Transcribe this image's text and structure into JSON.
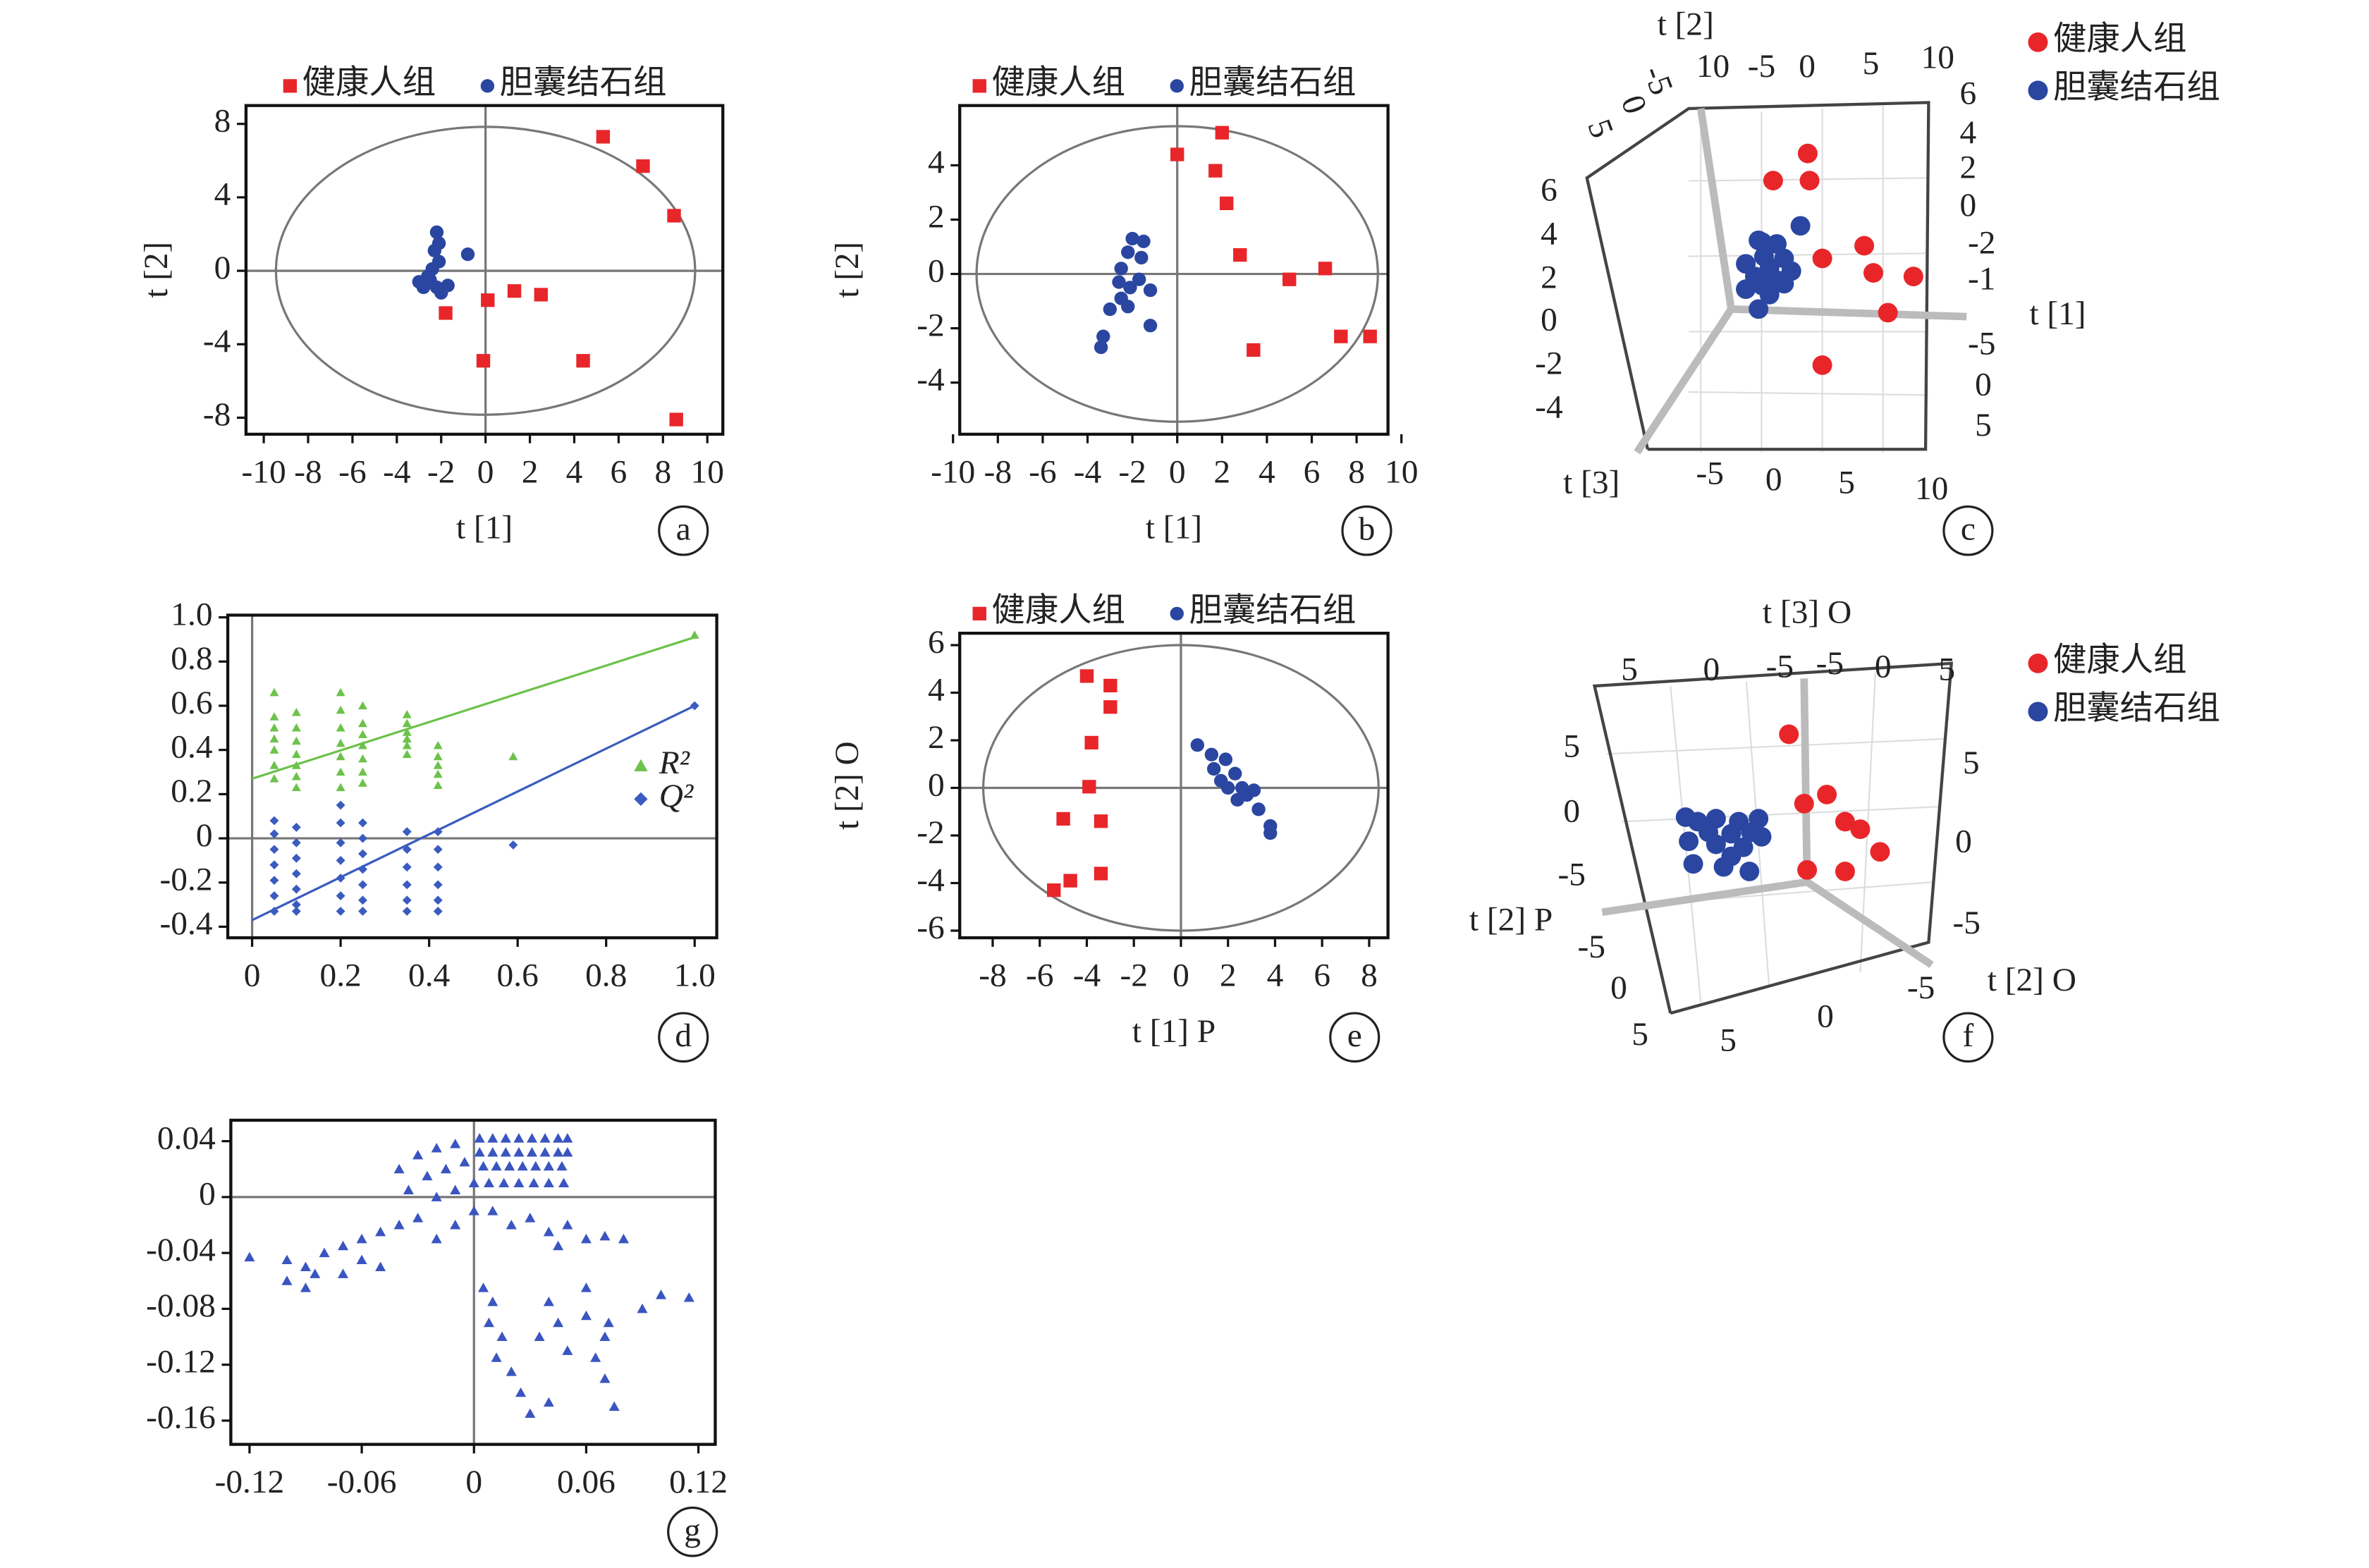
{
  "chart_data": [
    {
      "type": "scatter",
      "panel": "a",
      "x_label": "t [1]",
      "y_label": "t [2]",
      "legend": "top",
      "origin_lines": true,
      "xlim": [
        -10.8,
        10.7
      ],
      "ylim": [
        -8.9,
        9
      ],
      "xticks": [
        -10,
        -8,
        -6,
        -4,
        -2,
        0,
        2,
        4,
        6,
        8,
        10
      ],
      "yticks": [
        -8,
        -4,
        0,
        4,
        8
      ],
      "ellipse": {
        "rx": 9.45,
        "ry": 7.84
      },
      "series": [
        {
          "name": "健康人组",
          "color": "#e8262a",
          "marker": "square",
          "x": [
            5.3,
            7.1,
            8.5,
            1.3,
            2.5,
            0.1,
            -1.8,
            -0.1,
            4.4,
            8.6
          ],
          "y": [
            7.3,
            5.7,
            3,
            -1.1,
            -1.3,
            -1.6,
            -2.3,
            -4.9,
            -4.9,
            -8.1
          ]
        },
        {
          "name": "胆囊结石组",
          "color": "#2a46a0",
          "marker": "circle",
          "x": [
            -2.2,
            -2.1,
            -2.3,
            -0.8,
            -2.1,
            -2.6,
            -3,
            -2.2,
            -2.8,
            -2,
            -1.7,
            -2.4,
            -2.5
          ],
          "y": [
            2.1,
            1.5,
            1.1,
            0.9,
            0.5,
            -0.3,
            -0.6,
            -0.9,
            -0.9,
            -1.2,
            -0.8,
            0.1,
            -0.5
          ]
        }
      ]
    },
    {
      "type": "scatter",
      "panel": "b",
      "x_label": "t [1]",
      "y_label": "t [2]",
      "legend": "top",
      "origin_lines": true,
      "xlim": [
        -9.7,
        9.4
      ],
      "ylim": [
        -5.9,
        6.2
      ],
      "xticks": [
        -10,
        -8,
        -6,
        -4,
        -2,
        0,
        2,
        4,
        6,
        8,
        10
      ],
      "yticks": [
        -4,
        -2,
        0,
        2,
        4
      ],
      "ellipse": {
        "rx": 8.95,
        "ry": 5.44
      },
      "series": [
        {
          "name": "健康人组",
          "color": "#e8262a",
          "marker": "square",
          "x": [
            0,
            2,
            1.7,
            2.2,
            2.8,
            5,
            6.6,
            3.4,
            7.3,
            8.6
          ],
          "y": [
            4.4,
            5.2,
            3.8,
            2.6,
            0.7,
            -0.2,
            0.2,
            -2.8,
            -2.3,
            -2.3
          ]
        },
        {
          "name": "胆囊结石组",
          "color": "#2a46a0",
          "marker": "circle",
          "x": [
            -2,
            -1.5,
            -2.2,
            -1.6,
            -2.5,
            -1.7,
            -2.6,
            -2.1,
            -1.2,
            -3,
            -2.2,
            -3.3,
            -3.4,
            -1.2,
            -2.5
          ],
          "y": [
            1.3,
            1.2,
            0.8,
            0.6,
            0.2,
            -0.2,
            -0.3,
            -0.5,
            -0.6,
            -1.3,
            -1.2,
            -2.3,
            -2.7,
            -1.9,
            -0.9
          ]
        }
      ]
    },
    {
      "type": "scatter3d",
      "panel": "c",
      "legend": "right",
      "axis_labels": [
        "t [2]",
        "t [1]",
        "t [3]"
      ],
      "tick_groups": [
        [
          10,
          -5,
          0,
          5,
          10
        ],
        [
          -5,
          0,
          5
        ],
        [
          6,
          4,
          2,
          0,
          -2,
          -1,
          -5,
          0,
          5
        ],
        [
          -5,
          0,
          5,
          10
        ],
        [
          6,
          4,
          2,
          0,
          -2,
          -4
        ]
      ],
      "series": [
        {
          "name": "健康人组",
          "color": "#e8262a",
          "x": [
            4.2,
            2.3,
            4.3,
            7.3,
            7.8,
            10,
            5,
            8.6,
            5
          ],
          "y": [
            8.6,
            7.1,
            7.1,
            3.5,
            2,
            1.8,
            2.8,
            -0.2,
            -3.1
          ]
        },
        {
          "name": "胆囊结石组",
          "color": "#2a46a0",
          "x": [
            1.5,
            2.5,
            1.8,
            2.9,
            0.8,
            2.1,
            3.3,
            1.3,
            2.5,
            1.7,
            2.9,
            0.8,
            2.1,
            1.5,
            1.7,
            3.8
          ],
          "y": [
            3.8,
            3.6,
            2.9,
            2.8,
            2.5,
            2.3,
            2.1,
            1.8,
            1.6,
            1.3,
            1.4,
            1.1,
            0.8,
            0,
            3.7,
            4.6
          ]
        }
      ]
    },
    {
      "type": "scatter",
      "panel": "d",
      "legend": "inside-right",
      "origin_lines": true,
      "xlim": [
        -0.055,
        1.05
      ],
      "ylim": [
        -0.45,
        1.01
      ],
      "xticks": [
        0,
        0.2,
        0.4,
        0.6,
        0.8,
        {
          "value": 1,
          "label": "1.0"
        }
      ],
      "yticks": [
        -0.4,
        -0.2,
        0,
        0.2,
        0.4,
        0.6,
        0.8,
        {
          "value": 1,
          "label": "1.0"
        }
      ],
      "series": [
        {
          "name": "R²",
          "color": "#6cc24a",
          "marker": "triangle",
          "x": [
            0.05,
            0.05,
            0.05,
            0.05,
            0.05,
            0.05,
            0.05,
            0.1,
            0.1,
            0.1,
            0.1,
            0.1,
            0.1,
            0.1,
            0.2,
            0.2,
            0.2,
            0.2,
            0.2,
            0.2,
            0.2,
            0.25,
            0.25,
            0.25,
            0.25,
            0.25,
            0.25,
            0.25,
            0.35,
            0.35,
            0.35,
            0.35,
            0.35,
            0.35,
            0.42,
            0.42,
            0.42,
            0.42,
            0.42,
            0.59,
            1
          ],
          "y": [
            0.66,
            0.55,
            0.5,
            0.45,
            0.4,
            0.33,
            0.27,
            0.57,
            0.5,
            0.44,
            0.38,
            0.33,
            0.28,
            0.23,
            0.66,
            0.58,
            0.5,
            0.43,
            0.37,
            0.3,
            0.23,
            0.6,
            0.52,
            0.47,
            0.42,
            0.36,
            0.3,
            0.25,
            0.56,
            0.52,
            0.48,
            0.45,
            0.42,
            0.38,
            0.42,
            0.37,
            0.33,
            0.29,
            0.24,
            0.37,
            0.92
          ],
          "fit": {
            "x": [
              0,
              1
            ],
            "y": [
              0.27,
              0.91
            ]
          }
        },
        {
          "name": "Q²",
          "color": "#3a5bbf",
          "marker": "diamond",
          "x": [
            0.05,
            0.05,
            0.05,
            0.05,
            0.05,
            0.05,
            0.05,
            0.1,
            0.1,
            0.1,
            0.1,
            0.1,
            0.1,
            0.1,
            0.2,
            0.2,
            0.2,
            0.2,
            0.2,
            0.2,
            0.2,
            0.25,
            0.25,
            0.25,
            0.25,
            0.25,
            0.25,
            0.25,
            0.35,
            0.35,
            0.35,
            0.35,
            0.35,
            0.35,
            0.42,
            0.42,
            0.42,
            0.42,
            0.42,
            0.42,
            0.59,
            1
          ],
          "y": [
            0.08,
            0.02,
            -0.05,
            -0.12,
            -0.19,
            -0.26,
            -0.33,
            0.05,
            -0.02,
            -0.09,
            -0.16,
            -0.23,
            -0.3,
            -0.33,
            0.15,
            0.07,
            -0.02,
            -0.1,
            -0.18,
            -0.26,
            -0.33,
            0.07,
            0,
            -0.07,
            -0.14,
            -0.21,
            -0.28,
            -0.33,
            0.03,
            -0.05,
            -0.13,
            -0.21,
            -0.28,
            -0.33,
            0.03,
            -0.05,
            -0.13,
            -0.21,
            -0.28,
            -0.33,
            -0.03,
            0.6
          ],
          "fit": {
            "x": [
              0,
              1
            ],
            "y": [
              -0.37,
              0.6
            ]
          }
        }
      ]
    },
    {
      "type": "scatter",
      "panel": "e",
      "x_label": "t [1] P",
      "y_label": "t [2] O",
      "legend": "top",
      "origin_lines": true,
      "xlim": [
        -9.4,
        8.8
      ],
      "ylim": [
        -6.3,
        6.5
      ],
      "xticks": [
        -8,
        -6,
        -4,
        -2,
        0,
        2,
        4,
        6,
        8
      ],
      "yticks": [
        -6,
        -4,
        -2,
        0,
        2,
        4,
        6
      ],
      "ellipse": {
        "rx": 8.4,
        "ry": 6
      },
      "series": [
        {
          "name": "健康人组",
          "color": "#e8262a",
          "marker": "square",
          "x": [
            -4,
            -3,
            -3,
            -3.8,
            -3.9,
            -5,
            -3.4,
            -3.4,
            -4.7,
            -5.4
          ],
          "y": [
            4.7,
            4.3,
            3.4,
            1.9,
            0.05,
            -1.3,
            -1.4,
            -3.6,
            -3.9,
            -4.3
          ]
        },
        {
          "name": "胆囊结石组",
          "color": "#2a46a0",
          "marker": "circle",
          "x": [
            0.7,
            1.3,
            1.9,
            1.4,
            2.3,
            1.7,
            2.6,
            2,
            3.1,
            2.4,
            3.3,
            3.8,
            3.8,
            2.8
          ],
          "y": [
            1.8,
            1.4,
            1.2,
            0.8,
            0.6,
            0.3,
            0,
            0,
            -0.1,
            -0.5,
            -0.9,
            -1.6,
            -1.9,
            -0.3
          ]
        }
      ]
    },
    {
      "type": "scatter3d",
      "panel": "f",
      "legend": "right",
      "axis_labels": [
        "t [3] O",
        "t [2] P",
        "t [2] O"
      ],
      "tick_groups": [
        [
          5,
          0,
          -5,
          -5,
          0,
          5
        ],
        [
          5,
          0,
          -5
        ],
        [
          5,
          0,
          -5
        ],
        [
          -5,
          0,
          5
        ],
        [
          5,
          0,
          -5
        ]
      ],
      "series": [
        {
          "name": "健康人组",
          "color": "#e8262a",
          "x": [
            -1.2,
            1.3,
            -0.2,
            2.5,
            3.5,
            4.8,
            0,
            2.5
          ],
          "y": [
            9.8,
            5.8,
            5.2,
            4,
            3.5,
            2,
            0.8,
            0.7
          ]
        },
        {
          "name": "胆囊结石组",
          "color": "#2a46a0",
          "x": [
            -8,
            -7.2,
            -6,
            -4.5,
            -3.2,
            -6.5,
            -5,
            -3.7,
            -7.8,
            -6,
            -4.2,
            -3,
            -7.5,
            -5.5,
            -3.8,
            -5
          ],
          "y": [
            4.3,
            4,
            4.2,
            4,
            4.2,
            3.3,
            3.2,
            3.3,
            2.7,
            2.5,
            2.3,
            3,
            1.2,
            1,
            0.7,
            1.7
          ]
        }
      ]
    },
    {
      "type": "scatter",
      "panel": "g",
      "legend": "none",
      "origin_lines": true,
      "xlim": [
        -0.13,
        0.129
      ],
      "ylim": [
        -0.177,
        0.055
      ],
      "xticks": [
        -0.12,
        -0.06,
        0,
        0.06,
        0.12
      ],
      "yticks": [
        -0.16,
        -0.12,
        -0.08,
        -0.04,
        0,
        0.04
      ],
      "series": [
        {
          "color": "#3a55c0",
          "marker": "triangle",
          "x": [
            0.003,
            0.01,
            0.017,
            0.024,
            0.031,
            0.038,
            0.045,
            0.05,
            0.003,
            0.01,
            0.017,
            0.024,
            0.031,
            0.038,
            0.045,
            0.05,
            0.005,
            0.012,
            0.019,
            0.026,
            0.033,
            0.04,
            0.047,
            0,
            0.008,
            0.016,
            0.024,
            0.032,
            0.04,
            0.048,
            -0.03,
            -0.02,
            -0.01,
            -0.04,
            -0.025,
            -0.015,
            -0.005,
            -0.035,
            -0.02,
            -0.01,
            -0.12,
            -0.1,
            -0.09,
            -0.08,
            -0.07,
            -0.06,
            -0.05,
            -0.04,
            -0.03,
            -0.1,
            -0.09,
            -0.085,
            -0.07,
            -0.05,
            -0.06,
            -0.02,
            -0.01,
            0,
            0.01,
            0.02,
            0.03,
            0.04,
            0.05,
            0.06,
            0.07,
            0.08,
            0.045,
            0.005,
            0.01,
            0.008,
            0.015,
            0.012,
            0.02,
            0.025,
            0.03,
            0.04,
            0.035,
            0.045,
            0.04,
            0.05,
            0.06,
            0.065,
            0.07,
            0.075,
            0.072,
            0.09,
            0.1,
            0.115,
            0.06,
            0.07
          ],
          "y": [
            0.042,
            0.042,
            0.042,
            0.042,
            0.042,
            0.042,
            0.042,
            0.042,
            0.032,
            0.032,
            0.032,
            0.032,
            0.032,
            0.032,
            0.032,
            0.032,
            0.022,
            0.022,
            0.022,
            0.022,
            0.022,
            0.022,
            0.022,
            0.01,
            0.01,
            0.01,
            0.01,
            0.01,
            0.01,
            0.01,
            0.03,
            0.035,
            0.038,
            0.02,
            0.015,
            0.02,
            0.025,
            0.005,
            0,
            0.005,
            -0.043,
            -0.045,
            -0.05,
            -0.04,
            -0.035,
            -0.03,
            -0.025,
            -0.02,
            -0.015,
            -0.06,
            -0.065,
            -0.055,
            -0.055,
            -0.05,
            -0.045,
            -0.03,
            -0.02,
            -0.01,
            -0.01,
            -0.02,
            -0.015,
            -0.025,
            -0.02,
            -0.03,
            -0.028,
            -0.03,
            -0.035,
            -0.065,
            -0.075,
            -0.09,
            -0.1,
            -0.115,
            -0.125,
            -0.14,
            -0.155,
            -0.147,
            -0.1,
            -0.09,
            -0.075,
            -0.11,
            -0.085,
            -0.115,
            -0.13,
            -0.15,
            -0.09,
            -0.08,
            -0.07,
            -0.072,
            -0.065,
            -0.1
          ]
        }
      ]
    }
  ]
}
